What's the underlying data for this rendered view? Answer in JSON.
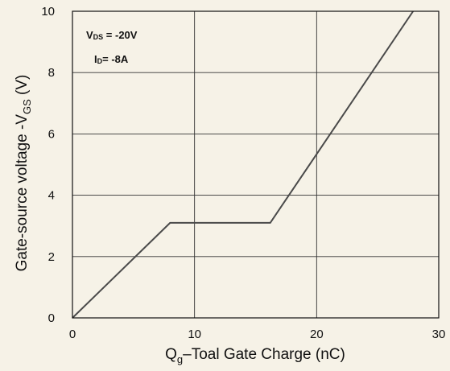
{
  "chart_data": {
    "type": "line",
    "xlabel": {
      "main": "Q",
      "sub": "g",
      "rest": "–Toal Gate Charge  (nC)"
    },
    "ylabel": {
      "main": "Gate-source voltage -V",
      "sub": "GS",
      "rest": " (V)"
    },
    "xlim": [
      0,
      30
    ],
    "ylim": [
      0,
      10
    ],
    "xticks": [
      0,
      10,
      20,
      30
    ],
    "yticks": [
      0,
      2,
      4,
      6,
      8,
      10
    ],
    "grid": true,
    "annotations": [
      {
        "main": "V",
        "sub": "DS",
        "rest": " = -20V"
      },
      {
        "main": "I",
        "sub": "D",
        "rest": "= -8A"
      }
    ],
    "series": [
      {
        "x": [
          0,
          8.0,
          16.2,
          27.9
        ],
        "y": [
          0,
          3.1,
          3.1,
          10
        ]
      }
    ],
    "colors": {
      "line": "#4a4a4a",
      "frame": "#111111",
      "background": "#f6f2e7"
    }
  }
}
